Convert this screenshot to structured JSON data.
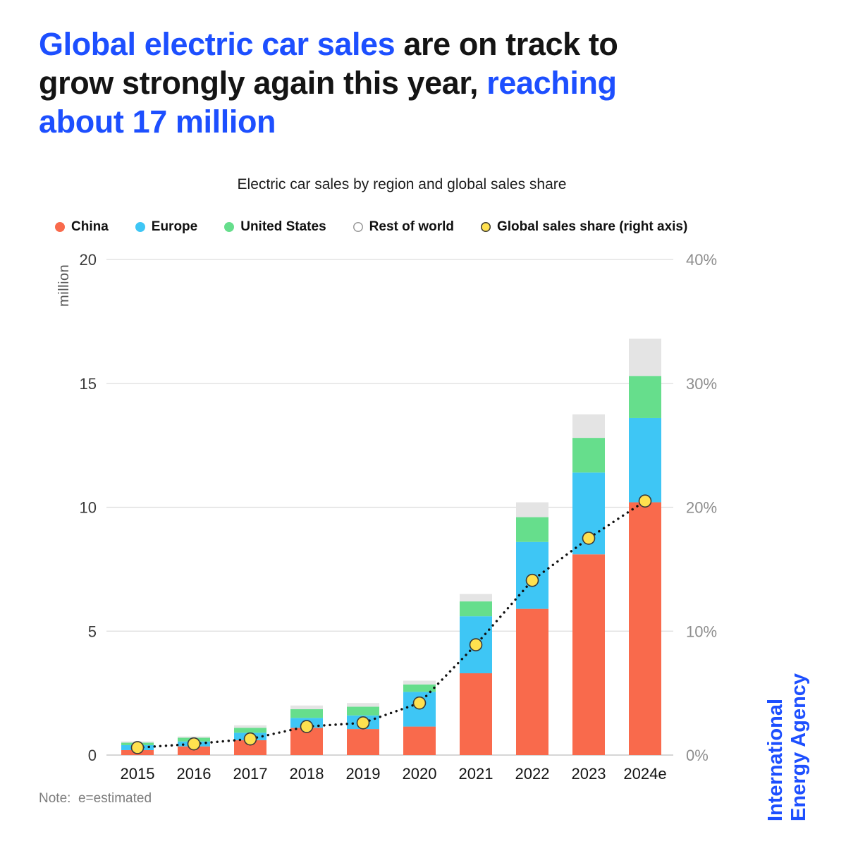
{
  "headline": {
    "part1": "Global electric car sales",
    "part2": " are on track to grow strongly again this year, ",
    "part3": "reaching about 17 million"
  },
  "note": "Note:  e=estimated",
  "branding": {
    "line1": "International",
    "line2": "Energy Agency"
  },
  "colors": {
    "accent_blue": "#1d4fff",
    "ink": "#141414",
    "gridline": "#dedede",
    "baseline": "#c9c9c9",
    "share_line": "#111111"
  },
  "chart_data": {
    "type": "bar",
    "stacked": true,
    "title": "Electric car sales by region and global sales share",
    "categories": [
      "2015",
      "2016",
      "2017",
      "2018",
      "2019",
      "2020",
      "2021",
      "2022",
      "2023",
      "2024e"
    ],
    "series": [
      {
        "name": "China",
        "color": "#F96A4C",
        "values": [
          0.2,
          0.35,
          0.6,
          1.1,
          1.05,
          1.15,
          3.3,
          5.9,
          8.1,
          10.2
        ]
      },
      {
        "name": "Europe",
        "color": "#3EC6F5",
        "values": [
          0.2,
          0.2,
          0.3,
          0.4,
          0.55,
          1.4,
          2.3,
          2.7,
          3.3,
          3.4
        ]
      },
      {
        "name": "United States",
        "color": "#66DE8C",
        "values": [
          0.1,
          0.15,
          0.2,
          0.35,
          0.35,
          0.3,
          0.6,
          1.0,
          1.4,
          1.7
        ]
      },
      {
        "name": "Rest of world",
        "color": "#E4E4E4",
        "dot_border": "#9a9a9a",
        "dot_fill": "#ffffff",
        "values": [
          0.05,
          0.05,
          0.1,
          0.15,
          0.15,
          0.15,
          0.3,
          0.6,
          0.95,
          1.5
        ]
      }
    ],
    "line_series": {
      "name": "Global sales share (right axis)",
      "color": "#FFE14F",
      "dot_border": "#3a3a3a",
      "axis": "right",
      "values": [
        0.6,
        0.9,
        1.3,
        2.3,
        2.6,
        4.2,
        8.9,
        14.1,
        17.5,
        20.5
      ]
    },
    "left_axis": {
      "label": "million",
      "ticks": [
        0,
        5,
        10,
        15,
        20
      ],
      "max": 20
    },
    "right_axis": {
      "ticks": [
        "0%",
        "10%",
        "20%",
        "30%",
        "40%"
      ],
      "max": 40
    },
    "grid": true,
    "legend_position": "top"
  }
}
